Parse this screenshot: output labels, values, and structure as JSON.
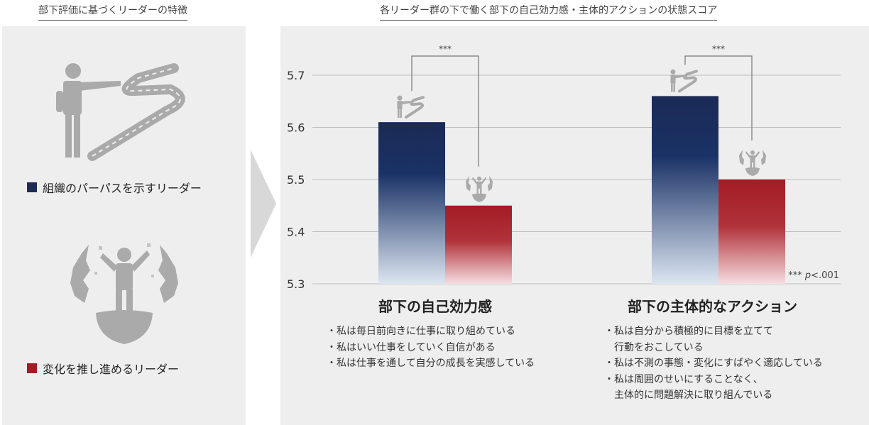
{
  "left_title": "部下評価に基づくリーダーの特徴",
  "right_title": "各リーダー群の下で働く部下の自己効力感・主体的アクションの状態スコア",
  "legend": {
    "purpose": {
      "label": "組織のパーパスを示すリーダー",
      "color": "#1d2b55"
    },
    "change": {
      "label": "変化を推し進めるリーダー",
      "color": "#a31c25"
    }
  },
  "colors": {
    "navy": "#1d2b55",
    "navy_light": "#dde6f2",
    "red": "#a31c25",
    "red_light": "#f6dde0",
    "panel": "#eeeeee"
  },
  "icons": {
    "purpose": "leader-pointing-road-icon",
    "change": "breaking-through-icon"
  },
  "significance_note": {
    "stars": "***",
    "p": "p",
    "value": "<.001"
  },
  "chart_data": {
    "type": "bar",
    "categories": [
      "部下の自己効力感",
      "部下の主体的なアクション"
    ],
    "series": [
      {
        "name": "組織のパーパスを示すリーダー",
        "values": [
          5.61,
          5.66
        ]
      },
      {
        "name": "変化を推し進めるリーダー",
        "values": [
          5.45,
          5.5
        ]
      }
    ],
    "ylim": [
      5.3,
      5.7
    ],
    "yticks": [
      5.3,
      5.4,
      5.5,
      5.6,
      5.7
    ],
    "ytick_labels": [
      "5.3",
      "5.4",
      "5.5",
      "5.6",
      "5.7"
    ],
    "significance": [
      "***",
      "***"
    ],
    "grid": true,
    "xlabel": "",
    "ylabel": ""
  },
  "groups": [
    {
      "title": "部下の自己効力感",
      "bullets": [
        "・私は毎日前向きに仕事に取り組めている",
        "・私はいい仕事をしていく自信がある",
        "・私は仕事を通して自分の成長を実感している"
      ]
    },
    {
      "title": "部下の主体的なアクション",
      "bullets": [
        "・私は自分から積極的に目標を立てて",
        "　行動をおこしている",
        "・私は不測の事態・変化にすばやく適応している",
        "・私は周囲のせいにすることなく、",
        "　主体的に問題解決に取り組んでいる"
      ]
    }
  ]
}
